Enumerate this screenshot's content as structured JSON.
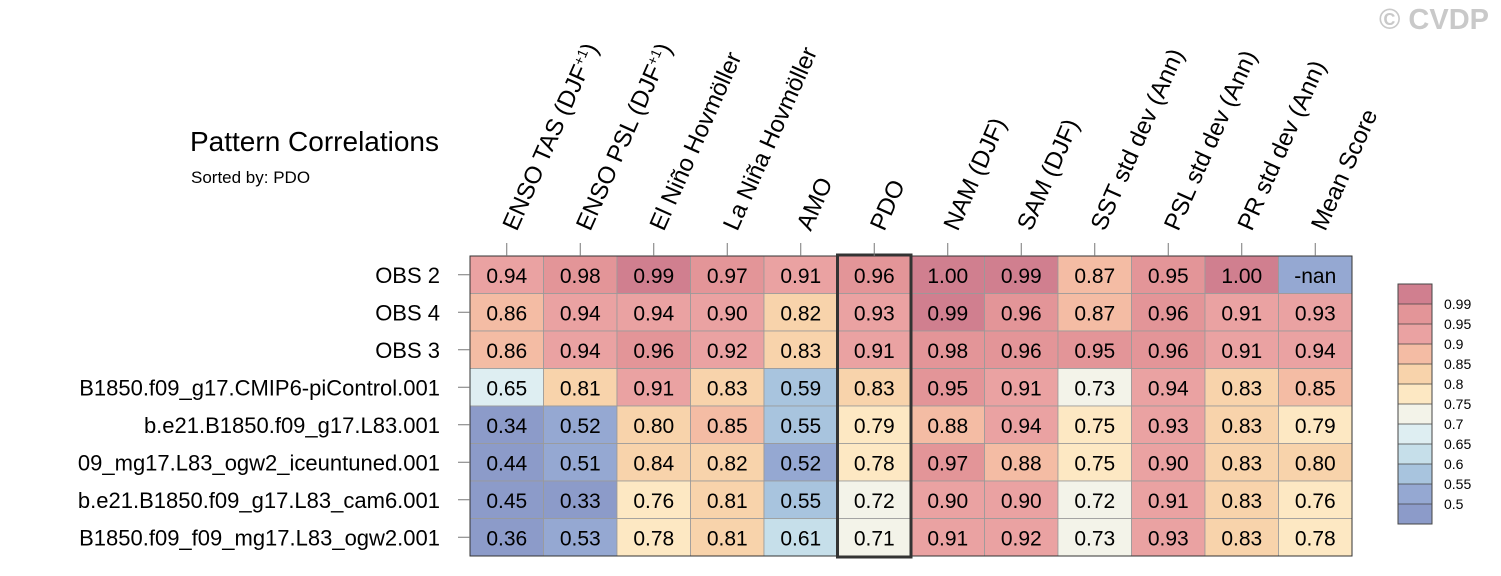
{
  "chart_data": {
    "type": "heatmap",
    "title": "Pattern Correlations",
    "subtitle": "Sorted by: PDO",
    "watermark": "© CVDP",
    "columns": [
      "ENSO TAS (DJF+1)",
      "ENSO PSL (DJF+1)",
      "El Niño Hovmöller",
      "La Niña Hovmöller",
      "AMO",
      "PDO",
      "NAM (DJF)",
      "SAM (DJF)",
      "SST std dev (Ann)",
      "PSL std dev (Ann)",
      "PR std dev (Ann)",
      "Mean Score"
    ],
    "rows": [
      "OBS 2",
      "OBS 4",
      "OBS 3",
      "B1850.f09_g17.CMIP6-piControl.001",
      "b.e21.B1850.f09_g17.L83.001",
      "09_mg17.L83_ogw2_iceuntuned.001",
      "b.e21.B1850.f09_g17.L83_cam6.001",
      "B1850.f09_f09_mg17.L83_ogw2.001"
    ],
    "values": [
      [
        "0.94",
        "0.98",
        "0.99",
        "0.97",
        "0.91",
        "0.96",
        "1.00",
        "0.99",
        "0.87",
        "0.95",
        "1.00",
        "-nan"
      ],
      [
        "0.86",
        "0.94",
        "0.94",
        "0.90",
        "0.82",
        "0.93",
        "0.99",
        "0.96",
        "0.87",
        "0.96",
        "0.91",
        "0.93"
      ],
      [
        "0.86",
        "0.94",
        "0.96",
        "0.92",
        "0.83",
        "0.91",
        "0.98",
        "0.96",
        "0.95",
        "0.96",
        "0.91",
        "0.94"
      ],
      [
        "0.65",
        "0.81",
        "0.91",
        "0.83",
        "0.59",
        "0.83",
        "0.95",
        "0.91",
        "0.73",
        "0.94",
        "0.83",
        "0.85"
      ],
      [
        "0.34",
        "0.52",
        "0.80",
        "0.85",
        "0.55",
        "0.79",
        "0.88",
        "0.94",
        "0.75",
        "0.93",
        "0.83",
        "0.79"
      ],
      [
        "0.44",
        "0.51",
        "0.84",
        "0.82",
        "0.52",
        "0.78",
        "0.97",
        "0.88",
        "0.75",
        "0.90",
        "0.83",
        "0.80"
      ],
      [
        "0.45",
        "0.33",
        "0.76",
        "0.81",
        "0.55",
        "0.72",
        "0.90",
        "0.90",
        "0.72",
        "0.91",
        "0.83",
        "0.76"
      ],
      [
        "0.36",
        "0.53",
        "0.78",
        "0.81",
        "0.61",
        "0.71",
        "0.91",
        "0.92",
        "0.73",
        "0.93",
        "0.83",
        "0.78"
      ]
    ],
    "highlight_column": "PDO",
    "colorbar": {
      "labels": [
        "0.99",
        "0.95",
        "0.9",
        "0.85",
        "0.8",
        "0.75",
        "0.7",
        "0.65",
        "0.6",
        "0.55",
        "0.5"
      ],
      "thresholds": [
        0.99,
        0.95,
        0.9,
        0.85,
        0.8,
        0.75,
        0.7,
        0.65,
        0.6,
        0.55,
        0.5
      ],
      "colors": [
        "#d07f8f",
        "#e39598",
        "#eaa2a2",
        "#f4bca4",
        "#f8d3ab",
        "#fde8c3",
        "#f3f3e9",
        "#deeef2",
        "#c6dfea",
        "#a8c4de",
        "#95a8d2",
        "#8c9bc9"
      ]
    }
  }
}
